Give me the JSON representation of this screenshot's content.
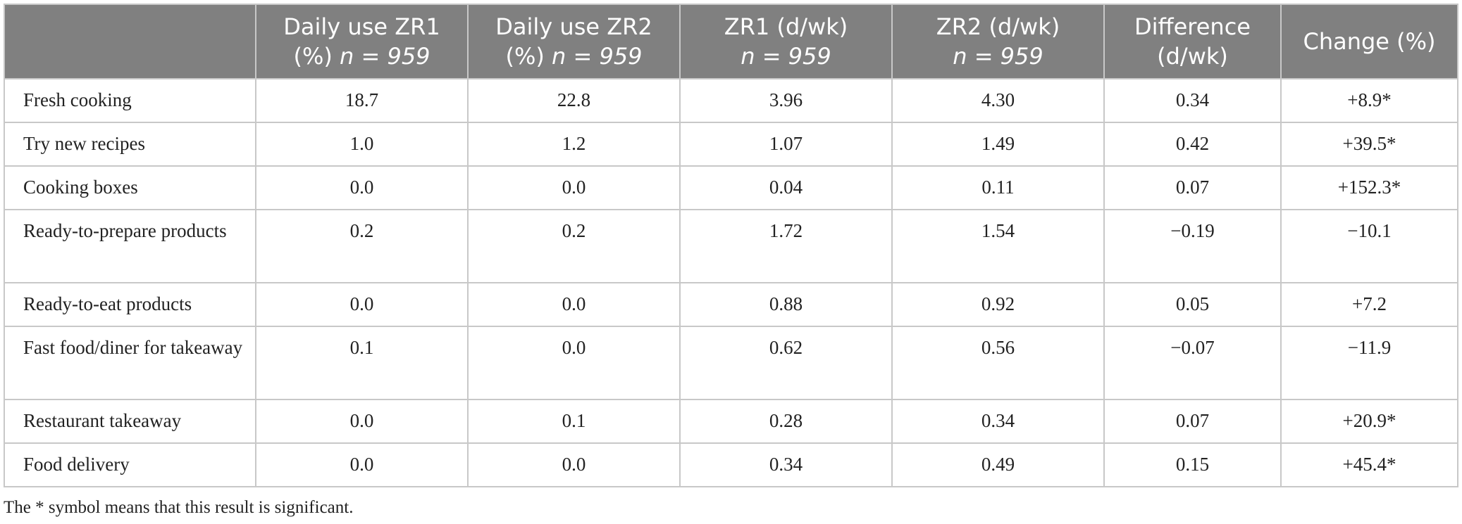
{
  "table": {
    "headers": [
      {
        "text": "",
        "n": ""
      },
      {
        "text": "Daily use ZR1 (%)",
        "n": "n = 959"
      },
      {
        "text": "Daily use ZR2 (%)",
        "n": "n = 959"
      },
      {
        "text": "ZR1 (d/wk)",
        "n": "n = 959"
      },
      {
        "text": "ZR2 (d/wk)",
        "n": "n = 959"
      },
      {
        "text": "Difference (d/wk)",
        "n": ""
      },
      {
        "text": "Change (%)",
        "n": ""
      }
    ],
    "rows": [
      {
        "label": "Fresh cooking",
        "cells": [
          "18.7",
          "22.8",
          "3.96",
          "4.30",
          "0.34",
          "+8.9*"
        ]
      },
      {
        "label": "Try new recipes",
        "cells": [
          "1.0",
          "1.2",
          "1.07",
          "1.49",
          "0.42",
          "+39.5*"
        ]
      },
      {
        "label": "Cooking boxes",
        "cells": [
          "0.0",
          "0.0",
          "0.04",
          "0.11",
          "0.07",
          "+152.3*"
        ]
      },
      {
        "label": "Ready-to-prepare products",
        "cells": [
          "0.2",
          "0.2",
          "1.72",
          "1.54",
          "−0.19",
          "−10.1"
        ]
      },
      {
        "label": "Ready-to-eat products",
        "cells": [
          "0.0",
          "0.0",
          "0.88",
          "0.92",
          "0.05",
          "+7.2"
        ]
      },
      {
        "label": "Fast food/diner for takeaway",
        "cells": [
          "0.1",
          "0.0",
          "0.62",
          "0.56",
          "−0.07",
          "−11.9"
        ]
      },
      {
        "label": "Restaurant takeaway",
        "cells": [
          "0.0",
          "0.1",
          "0.28",
          "0.34",
          "0.07",
          "+20.9*"
        ]
      },
      {
        "label": "Food delivery",
        "cells": [
          "0.0",
          "0.0",
          "0.34",
          "0.49",
          "0.15",
          "+45.4*"
        ]
      }
    ]
  },
  "footnote": "The * symbol means that this result is significant."
}
